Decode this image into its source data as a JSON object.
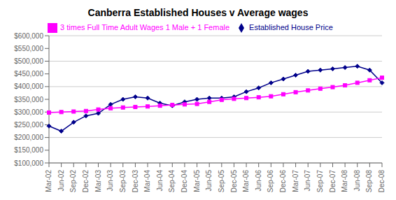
{
  "chart_data": {
    "type": "line",
    "title": "Canberra Established Houses v Average wages",
    "categories": [
      "Mar-02",
      "Jun-02",
      "Sep-02",
      "Dec-02",
      "Mar-03",
      "Jun-03",
      "Sep-03",
      "Dec-03",
      "Mar-04",
      "Jun-04",
      "Sep-04",
      "Dec-04",
      "Mar-05",
      "Jun-05",
      "Sep-05",
      "Dec-05",
      "Mar-06",
      "Jun-06",
      "Sep-06",
      "Dec-06",
      "Mar-07",
      "Jun-07",
      "Sep-07",
      "Dec-07",
      "Mar-08",
      "Jun-08",
      "Sep-08",
      "Dec-08"
    ],
    "series": [
      {
        "name": "Established House Price",
        "color": "#00008B",
        "marker": "diamond",
        "values": [
          245000,
          225000,
          260000,
          285000,
          295000,
          330000,
          350000,
          360000,
          355000,
          335000,
          325000,
          340000,
          350000,
          355000,
          355000,
          360000,
          380000,
          395000,
          415000,
          430000,
          445000,
          460000,
          465000,
          470000,
          475000,
          480000,
          465000,
          415000
        ]
      },
      {
        "name": "3 times Full Time Adult Wages 1 Male + 1 Female",
        "color": "#FF00FF",
        "marker": "square",
        "values": [
          298000,
          300000,
          302000,
          304000,
          310000,
          315000,
          318000,
          320000,
          322000,
          325000,
          328000,
          330000,
          332000,
          340000,
          348000,
          352000,
          355000,
          358000,
          362000,
          370000,
          378000,
          385000,
          392000,
          398000,
          405000,
          415000,
          425000,
          435000
        ]
      }
    ],
    "ylim": [
      100000,
      600000
    ],
    "yticks": [
      {
        "value": 100000,
        "label": "$100,000"
      },
      {
        "value": 150000,
        "label": "$150,000"
      },
      {
        "value": 200000,
        "label": "$200,000"
      },
      {
        "value": 250000,
        "label": "$250,000"
      },
      {
        "value": 300000,
        "label": "$300,000"
      },
      {
        "value": 350000,
        "label": "$350,000"
      },
      {
        "value": 400000,
        "label": "$400,000"
      },
      {
        "value": 450000,
        "label": "$450,000"
      },
      {
        "value": 500000,
        "label": "$500,000"
      },
      {
        "value": 550000,
        "label": "$550,000"
      },
      {
        "value": 600000,
        "label": "$600,000"
      }
    ],
    "grid": true,
    "legend": "top"
  }
}
